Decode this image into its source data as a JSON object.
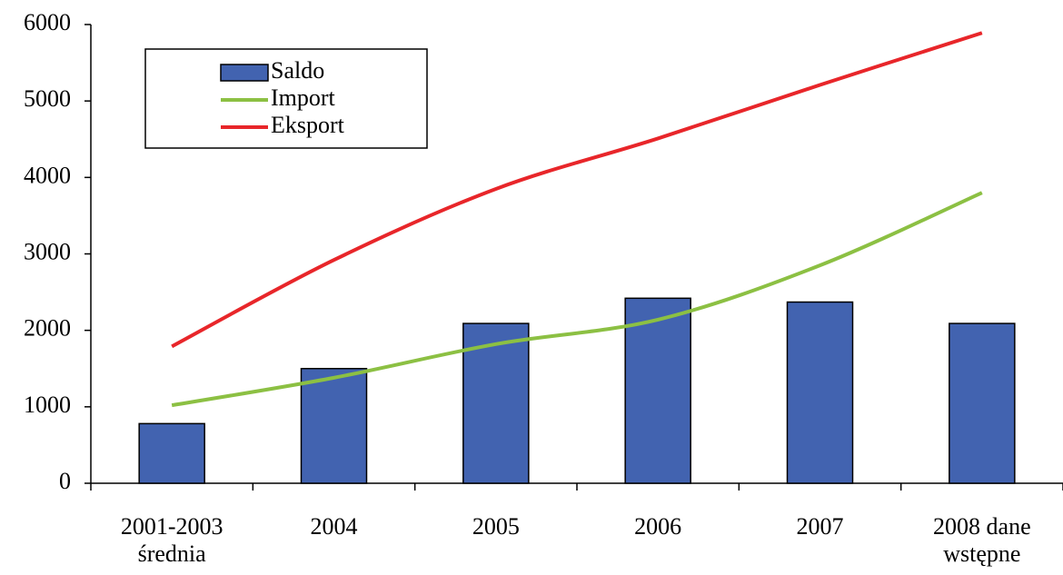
{
  "chart_data": {
    "type": "bar",
    "categories": [
      "2001-2003 średnia",
      "2004",
      "2005",
      "2006",
      "2007",
      "2008 dane wstępne"
    ],
    "series": [
      {
        "name": "Saldo",
        "type": "bar",
        "color": "#4263b0",
        "values": [
          780,
          1500,
          2090,
          2420,
          2370,
          2090
        ]
      },
      {
        "name": "Import",
        "type": "line",
        "color": "#8cc043",
        "values": [
          1020,
          1380,
          1820,
          2140,
          2850,
          3800
        ]
      },
      {
        "name": "Eksport",
        "type": "line",
        "color": "#e8262a",
        "values": [
          1790,
          2920,
          3850,
          4510,
          5210,
          5890
        ]
      }
    ],
    "ylim": [
      0,
      6000
    ],
    "yticks": [
      0,
      1000,
      2000,
      3000,
      4000,
      5000,
      6000
    ],
    "grid": false
  }
}
